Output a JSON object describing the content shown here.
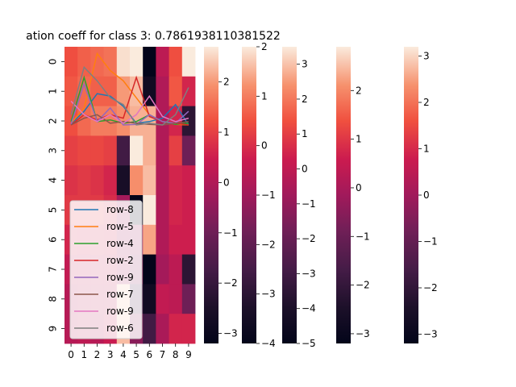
{
  "chart_data": {
    "type": "heatmap",
    "title": "ation coeff for class 3: 0.7861938110381522",
    "x_tick_labels": [
      "0",
      "1",
      "2",
      "3",
      "4",
      "5",
      "6",
      "7",
      "8",
      "9"
    ],
    "y_tick_labels": [
      "0",
      "1",
      "2",
      "3",
      "4",
      "5",
      "6",
      "7",
      "8",
      "9"
    ],
    "colormap": "rocket",
    "heatmap_values": [
      [
        1.2,
        1.4,
        1.5,
        1.6,
        2.6,
        2.8,
        -3.5,
        0.2,
        1.2,
        2.7
      ],
      [
        1.3,
        1.5,
        1.4,
        1.4,
        2.0,
        2.3,
        -2.8,
        0.0,
        1.3,
        0.6
      ],
      [
        1.2,
        1.5,
        1.7,
        1.7,
        1.9,
        2.2,
        2.2,
        0.0,
        0.6,
        -2.2
      ],
      [
        1.0,
        1.1,
        1.1,
        1.0,
        -1.8,
        2.8,
        2.2,
        0.0,
        1.0,
        -1.0
      ],
      [
        0.8,
        0.9,
        0.8,
        0.6,
        -2.6,
        1.9,
        2.3,
        0.0,
        0.6,
        0.5
      ],
      [
        0.9,
        0.9,
        0.9,
        0.7,
        -0.2,
        -3.4,
        2.8,
        0.0,
        0.6,
        0.5
      ],
      [
        0.6,
        0.5,
        0.6,
        0.5,
        -0.2,
        -0.4,
        2.1,
        0.0,
        0.5,
        0.5
      ],
      [
        0.3,
        0.3,
        0.3,
        0.3,
        -0.1,
        -0.6,
        -4.0,
        -0.2,
        0.2,
        -2.2
      ],
      [
        0.1,
        0.2,
        0.2,
        0.2,
        2.3,
        -1.6,
        -2.8,
        0.3,
        0.2,
        -1.0
      ],
      [
        0.1,
        0.2,
        0.1,
        0.4,
        2.3,
        -0.6,
        -1.8,
        -0.1,
        0.6,
        0.6
      ]
    ],
    "colorbars": [
      {
        "ticks": [
          -3,
          -2,
          -1,
          0,
          1,
          2
        ],
        "range": [
          -3.2,
          2.7
        ]
      },
      {
        "ticks": [
          -4,
          -3,
          -2,
          -1,
          0,
          1,
          2
        ],
        "range": [
          -4.0,
          2.0
        ]
      },
      {
        "ticks": [
          -5,
          -4,
          -3,
          -2,
          -1,
          0,
          1,
          2,
          3
        ],
        "range": [
          -5.0,
          3.5
        ]
      },
      {
        "ticks": [
          -3,
          -2,
          -1,
          0,
          1,
          2
        ],
        "range": [
          -3.2,
          2.9
        ]
      },
      {
        "ticks": [
          -3,
          -2,
          -1,
          0,
          1,
          2,
          3
        ],
        "range": [
          -3.2,
          3.2
        ]
      }
    ],
    "line_series": [
      {
        "name": "row-8",
        "color": "#1f77b4",
        "values": [
          0.03,
          0.4,
          0.92,
          0.85,
          0.55,
          0.05,
          0.1,
          0.2,
          0.6,
          0.0
        ]
      },
      {
        "name": "row-5",
        "color": "#ff7f0e",
        "values": [
          0.05,
          0.5,
          2.1,
          1.6,
          1.3,
          0.8,
          0.3,
          0.1,
          0.02,
          0.0
        ]
      },
      {
        "name": "row-4",
        "color": "#2ca02c",
        "values": [
          0.1,
          1.4,
          0.1,
          0.15,
          0.05,
          0.1,
          0.3,
          0.1,
          0.02,
          0.05
        ]
      },
      {
        "name": "row-2",
        "color": "#d62728",
        "values": [
          0.0,
          0.3,
          0.15,
          0.3,
          0.2,
          1.4,
          0.25,
          0.1,
          0.05,
          0.0
        ]
      },
      {
        "name": "row-9",
        "color": "#9467bd",
        "values": [
          0.02,
          1.2,
          0.1,
          0.5,
          0.0,
          0.02,
          0.3,
          0.1,
          0.05,
          0.4
        ]
      },
      {
        "name": "row-7",
        "color": "#8c564b",
        "values": [
          0.0,
          0.2,
          0.3,
          0.05,
          0.1,
          0.05,
          0.02,
          0.0,
          0.05,
          0.1
        ]
      },
      {
        "name": "row-9",
        "color": "#e377c2",
        "values": [
          0.7,
          0.3,
          0.1,
          0.3,
          0.05,
          0.3,
          0.85,
          0.25,
          0.1,
          0.2
        ]
      },
      {
        "name": "row-6",
        "color": "#7f7f7f",
        "values": [
          0.3,
          1.7,
          1.3,
          0.8,
          0.6,
          0.0,
          0.05,
          0.0,
          0.3,
          1.1
        ]
      }
    ],
    "line_ylim": [
      0,
      2.3
    ],
    "legend": "lower-left"
  }
}
